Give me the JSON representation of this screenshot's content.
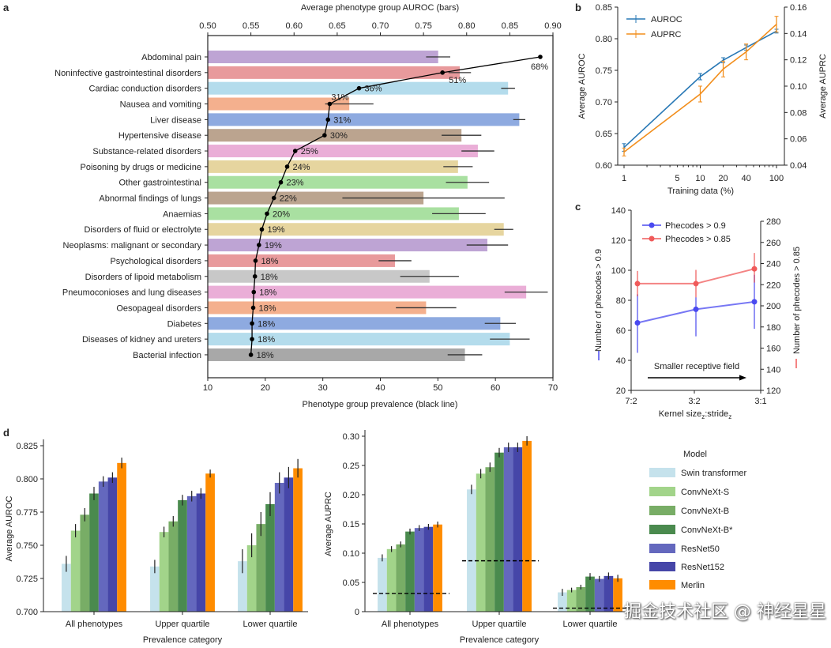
{
  "watermark": "掘金技术社区 @ 神经星星",
  "chart_data": [
    {
      "panel": "a",
      "type": "bar",
      "orientation": "horizontal",
      "top_axis_label": "Average phenotype group AUROC (bars)",
      "bottom_axis_label": "Phenotype group prevalence (black line)",
      "auroc_lim": [
        0.5,
        0.9
      ],
      "auroc_ticks": [
        "0.50",
        "0.55",
        "0.60",
        "0.65",
        "0.70",
        "0.75",
        "0.80",
        "0.85",
        "0.90"
      ],
      "prev_lim": [
        10,
        70
      ],
      "prev_ticks": [
        "10",
        "20",
        "30",
        "40",
        "50",
        "60",
        "70"
      ],
      "categories": [
        "Abdominal pain",
        "Noninfective gastrointestinal disorders",
        "Cardiac conduction disorders",
        "Nausea and vomiting",
        "Liver disease",
        "Hypertensive disease",
        "Substance-related disorders",
        "Poisoning by drugs or medicine",
        "Other gastrointestinal",
        "Abnormal findings of lungs",
        "Anaemias",
        "Disorders of fluid or electrolyte",
        "Neoplasms: malignant or secondary",
        "Psychological disorders",
        "Disorders of lipoid metabolism",
        "Pneumoconioses and lung diseases",
        "Oesopageal disorders",
        "Diabetes",
        "Diseases of kidney and ureters",
        "Bacterial infection"
      ],
      "auroc": [
        0.767,
        0.792,
        0.848,
        0.664,
        0.861,
        0.794,
        0.813,
        0.79,
        0.801,
        0.75,
        0.791,
        0.843,
        0.824,
        0.717,
        0.757,
        0.869,
        0.753,
        0.839,
        0.85,
        0.798
      ],
      "auroc_err": [
        0.014,
        0.013,
        0.008,
        0.028,
        0.007,
        0.023,
        0.019,
        0.017,
        0.025,
        0.094,
        0.031,
        0.011,
        0.024,
        0.019,
        0.034,
        0.025,
        0.035,
        0.018,
        0.023,
        0.02
      ],
      "prevalence": [
        67.8,
        50.8,
        36.3,
        31.2,
        30.9,
        30.3,
        25.2,
        23.8,
        22.7,
        21.5,
        20.3,
        19.4,
        18.9,
        18.3,
        18.2,
        18.0,
        17.9,
        17.7,
        17.7,
        17.5
      ],
      "prevalence_labels": [
        "68%",
        "51%",
        "36%",
        "31%",
        "31%",
        "30%",
        "25%",
        "24%",
        "23%",
        "22%",
        "20%",
        "19%",
        "19%",
        "18%",
        "18%",
        "18%",
        "18%",
        "18%",
        "18%",
        "18%"
      ],
      "colors": [
        "#bea4d4",
        "#e89a9c",
        "#b4dcec",
        "#f4b08e",
        "#8eaae0",
        "#bba48f",
        "#eaaed7",
        "#e6d59f",
        "#a9e0a1",
        "#bba48f",
        "#a9e0a1",
        "#e6d59f",
        "#bea4d4",
        "#e89a9c",
        "#c8c8c8",
        "#eaaed7",
        "#f4b08e",
        "#8eaae0",
        "#b4dcec",
        "#a8a8a8"
      ]
    },
    {
      "panel": "b",
      "type": "line",
      "xlabel": "Training data (%)",
      "ylabel": "Average AUROC",
      "y2label": "Average AUPRC",
      "xscale": "log",
      "x": [
        1,
        10,
        20,
        40,
        100
      ],
      "xticks": [
        "1",
        "5",
        "10",
        "20",
        "40",
        "100"
      ],
      "ylim": [
        0.6,
        0.85
      ],
      "yticks": [
        "0.60",
        "0.65",
        "0.70",
        "0.75",
        "0.80",
        "0.85"
      ],
      "y2lim": [
        0.04,
        0.16
      ],
      "y2ticks": [
        "0.04",
        "0.06",
        "0.08",
        "0.10",
        "0.12",
        "0.14",
        "0.16"
      ],
      "legend_position": "top-left",
      "series": [
        {
          "name": "AUROC",
          "axis": "left",
          "color": "#2878b5",
          "values": [
            0.628,
            0.74,
            0.766,
            0.786,
            0.812
          ],
          "err": [
            0.006,
            0.005,
            0.004,
            0.004,
            0.003
          ]
        },
        {
          "name": "AUPRC",
          "axis": "right",
          "color": "#f28e1c",
          "values": [
            0.05,
            0.094,
            0.113,
            0.126,
            0.147
          ],
          "err": [
            0.003,
            0.006,
            0.006,
            0.006,
            0.006
          ]
        }
      ]
    },
    {
      "panel": "c",
      "type": "line",
      "xlabel": "Kernel size",
      "xlabel_sub1": "z",
      "xlabel_mid": ":stride",
      "xlabel_sub2": "z",
      "ylabel": "Number of phecodes > 0.9",
      "y2label": "Number of phecodes > 0.85",
      "categories": [
        "7:2",
        "3:2",
        "3:1"
      ],
      "ylim": [
        20,
        140
      ],
      "yticks": [
        "20",
        "40",
        "60",
        "80",
        "100",
        "120",
        "140"
      ],
      "y2lim": [
        120,
        290
      ],
      "y2ticks": [
        "120",
        "140",
        "160",
        "180",
        "200",
        "220",
        "240",
        "260",
        "280"
      ],
      "annotation": "Smaller receptive field",
      "legend_position": "top-left",
      "series": [
        {
          "name": "Phecodes > 0.9",
          "axis": "left",
          "color": "#4a4af0",
          "values": [
            65,
            74,
            79
          ],
          "err_low": [
            45,
            56,
            61
          ],
          "err_high": [
            84,
            82,
            97
          ]
        },
        {
          "name": "Phecodes > 0.85",
          "axis": "right",
          "color": "#f05a5a",
          "values": [
            221,
            221,
            235
          ],
          "err_low": [
            209,
            208,
            222
          ],
          "err_high": [
            233,
            234,
            250
          ]
        }
      ]
    },
    {
      "panel": "d-auroc",
      "type": "bar",
      "xlabel": "Prevalence category",
      "ylabel": "Average AUROC",
      "categories": [
        "All phenotypes",
        "Upper quartile",
        "Lower quartile"
      ],
      "ylim": [
        0.7,
        0.825
      ],
      "yticks": [
        "0.700",
        "0.725",
        "0.750",
        "0.775",
        "0.800",
        "0.825"
      ],
      "series": [
        {
          "name": "Swin transformer",
          "values": [
            0.736,
            0.734,
            0.738
          ],
          "err": [
            0.006,
            0.005,
            0.009
          ]
        },
        {
          "name": "ConvNeXt-S",
          "values": [
            0.761,
            0.76,
            0.75
          ],
          "err": [
            0.005,
            0.004,
            0.009
          ]
        },
        {
          "name": "ConvNeXt-B",
          "values": [
            0.773,
            0.768,
            0.766
          ],
          "err": [
            0.005,
            0.004,
            0.009
          ]
        },
        {
          "name": "ConvNeXt-B*",
          "values": [
            0.789,
            0.784,
            0.781
          ],
          "err": [
            0.005,
            0.004,
            0.009
          ]
        },
        {
          "name": "ResNet50",
          "values": [
            0.798,
            0.787,
            0.797
          ],
          "err": [
            0.004,
            0.004,
            0.008
          ]
        },
        {
          "name": "ResNet152",
          "values": [
            0.801,
            0.789,
            0.801
          ],
          "err": [
            0.004,
            0.004,
            0.008
          ]
        },
        {
          "name": "Merlin",
          "values": [
            0.812,
            0.804,
            0.808
          ],
          "err": [
            0.004,
            0.003,
            0.007
          ]
        }
      ]
    },
    {
      "panel": "d-auprc",
      "type": "bar",
      "xlabel": "Prevalence category",
      "ylabel": "Average AUPRC",
      "categories": [
        "All phenotypes",
        "Upper quartile",
        "Lower quartile"
      ],
      "ylim": [
        0,
        0.3
      ],
      "yticks": [
        "0",
        "0.05",
        "0.10",
        "0.15",
        "0.20",
        "0.25",
        "0.30"
      ],
      "baseline_dashed": [
        0.031,
        0.087,
        0.006
      ],
      "series": [
        {
          "name": "Swin transformer",
          "values": [
            0.092,
            0.209,
            0.033
          ],
          "err": [
            0.006,
            0.008,
            0.006
          ]
        },
        {
          "name": "ConvNeXt-S",
          "values": [
            0.107,
            0.236,
            0.037
          ],
          "err": [
            0.005,
            0.008,
            0.004
          ]
        },
        {
          "name": "ConvNeXt-B",
          "values": [
            0.115,
            0.247,
            0.042
          ],
          "err": [
            0.005,
            0.008,
            0.004
          ]
        },
        {
          "name": "ConvNeXt-B*",
          "values": [
            0.137,
            0.272,
            0.06
          ],
          "err": [
            0.005,
            0.008,
            0.006
          ]
        },
        {
          "name": "ResNet50",
          "values": [
            0.143,
            0.281,
            0.056
          ],
          "err": [
            0.005,
            0.008,
            0.005
          ]
        },
        {
          "name": "ResNet152",
          "values": [
            0.145,
            0.281,
            0.061
          ],
          "err": [
            0.005,
            0.008,
            0.006
          ]
        },
        {
          "name": "Merlin",
          "values": [
            0.149,
            0.292,
            0.057
          ],
          "err": [
            0.005,
            0.008,
            0.006
          ]
        }
      ]
    }
  ],
  "legend": {
    "title": "Model",
    "items": [
      "Swin transformer",
      "ConvNeXt-S",
      "ConvNeXt-B",
      "ConvNeXt-B*",
      "ResNet50",
      "ResNet152",
      "Merlin"
    ],
    "colors": [
      "#c5e2ec",
      "#a2d48a",
      "#78ad66",
      "#4a8a4e",
      "#6468be",
      "#4646a8",
      "#ff8c00"
    ]
  },
  "panel_labels": [
    "a",
    "b",
    "c",
    "d"
  ]
}
